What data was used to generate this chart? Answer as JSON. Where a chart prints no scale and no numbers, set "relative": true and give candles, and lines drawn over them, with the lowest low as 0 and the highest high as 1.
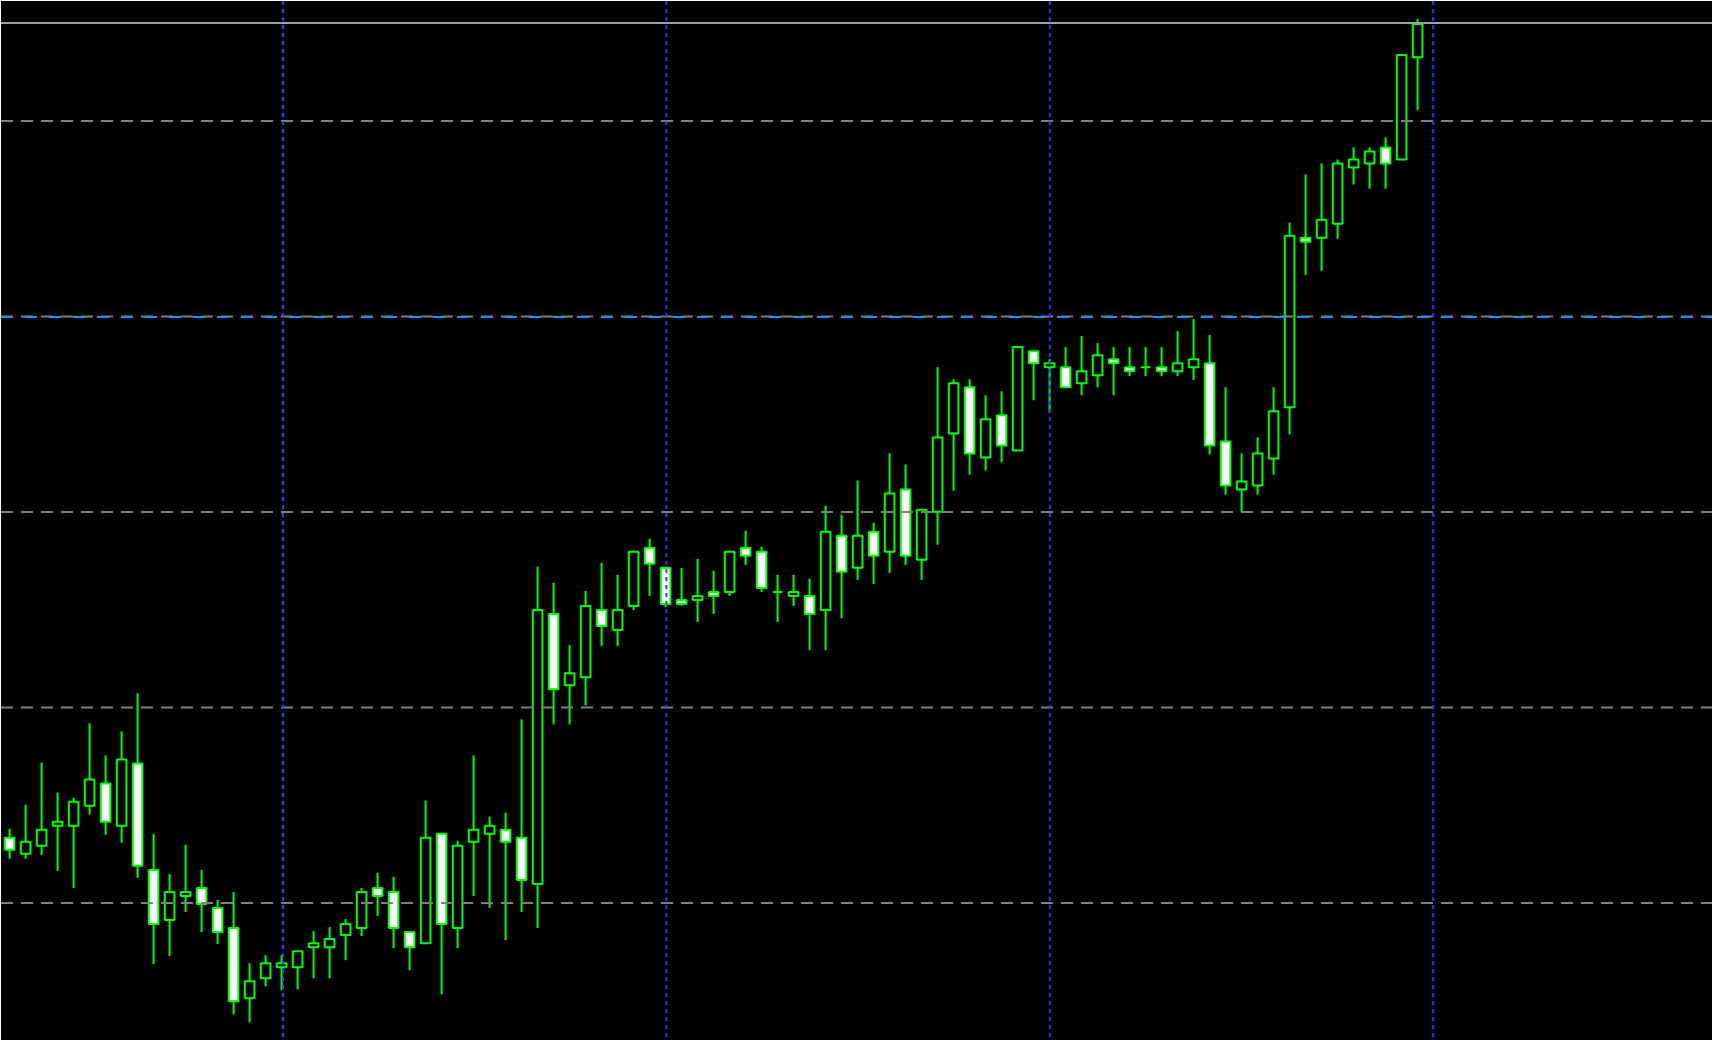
{
  "chart_data": {
    "type": "candlestick",
    "relative": true,
    "grid": true,
    "color": "#00ff00",
    "categories": [
      null,
      null,
      null,
      null,
      null,
      null,
      null,
      null,
      null,
      null,
      null,
      null,
      null,
      null,
      null,
      null,
      null,
      null,
      null,
      null,
      null,
      null,
      null,
      null,
      null,
      null,
      null,
      null,
      null,
      null,
      null,
      null,
      null,
      null,
      null,
      null,
      null,
      null,
      null,
      null,
      null,
      null,
      null,
      null,
      null,
      null,
      null,
      null,
      null,
      null,
      null,
      null,
      null,
      null,
      null,
      null,
      null,
      null,
      null,
      null,
      null,
      null,
      null,
      null,
      null,
      null,
      null,
      null,
      null,
      null,
      null,
      null,
      null,
      null,
      null,
      null,
      null,
      null,
      null,
      null,
      null,
      null,
      null,
      null,
      null,
      null,
      null,
      null,
      null
    ],
    "ohlc": [
      [
        0.184,
        0.193,
        0.163,
        0.172
      ],
      [
        0.168,
        0.217,
        0.163,
        0.18
      ],
      [
        0.176,
        0.259,
        0.167,
        0.192
      ],
      [
        0.196,
        0.229,
        0.151,
        0.2
      ],
      [
        0.196,
        0.224,
        0.134,
        0.22
      ],
      [
        0.216,
        0.298,
        0.207,
        0.242
      ],
      [
        0.238,
        0.266,
        0.187,
        0.2
      ],
      [
        0.196,
        0.29,
        0.179,
        0.262
      ],
      [
        0.258,
        0.328,
        0.144,
        0.156
      ],
      [
        0.152,
        0.188,
        0.058,
        0.098
      ],
      [
        0.102,
        0.148,
        0.066,
        0.13
      ],
      [
        0.126,
        0.177,
        0.11,
        0.13
      ],
      [
        0.134,
        0.152,
        0.09,
        0.118
      ],
      [
        0.114,
        0.122,
        0.078,
        0.09
      ],
      [
        0.094,
        0.13,
        0.008,
        0.021
      ],
      [
        0.024,
        0.059,
        0,
        0.041
      ],
      [
        0.044,
        0.067,
        0.036,
        0.059
      ],
      [
        0.055,
        0.067,
        0.032,
        0.059
      ],
      [
        0.055,
        0.071,
        0.033,
        0.071
      ],
      [
        0.075,
        0.091,
        0.044,
        0.079
      ],
      [
        0.075,
        0.095,
        0.044,
        0.083
      ],
      [
        0.087,
        0.103,
        0.062,
        0.098
      ],
      [
        0.094,
        0.134,
        0.086,
        0.13
      ],
      [
        0.134,
        0.149,
        0.106,
        0.126
      ],
      [
        0.13,
        0.145,
        0.074,
        0.094
      ],
      [
        0.09,
        0.09,
        0.052,
        0.075
      ],
      [
        0.079,
        0.221,
        0.079,
        0.184
      ],
      [
        0.188,
        0.189,
        0.028,
        0.098
      ],
      [
        0.094,
        0.181,
        0.074,
        0.176
      ],
      [
        0.18,
        0.266,
        0.126,
        0.192
      ],
      [
        0.188,
        0.205,
        0.114,
        0.196
      ],
      [
        0.192,
        0.209,
        0.082,
        0.18
      ],
      [
        0.184,
        0.302,
        0.11,
        0.142
      ],
      [
        0.138,
        0.454,
        0.094,
        0.411
      ],
      [
        0.407,
        0.438,
        0.297,
        0.332
      ],
      [
        0.336,
        0.376,
        0.297,
        0.348
      ],
      [
        0.344,
        0.43,
        0.316,
        0.415
      ],
      [
        0.411,
        0.458,
        0.375,
        0.395
      ],
      [
        0.391,
        0.446,
        0.375,
        0.411
      ],
      [
        0.415,
        0.47,
        0.411,
        0.469
      ],
      [
        0.473,
        0.482,
        0.425,
        0.457
      ],
      [
        0.453,
        0.454,
        0.414,
        0.417
      ],
      [
        0.421,
        0.453,
        0.415,
        0.417
      ],
      [
        0.421,
        0.462,
        0.399,
        0.425
      ],
      [
        0.429,
        0.45,
        0.407,
        0.425
      ],
      [
        0.429,
        0.47,
        0.425,
        0.469
      ],
      [
        0.473,
        0.49,
        0.456,
        0.465
      ],
      [
        0.469,
        0.474,
        0.429,
        0.433
      ],
      [
        0.429,
        0.446,
        0.399,
        0.429
      ],
      [
        0.425,
        0.446,
        0.415,
        0.429
      ],
      [
        0.425,
        0.442,
        0.371,
        0.407
      ],
      [
        0.411,
        0.515,
        0.371,
        0.489
      ],
      [
        0.485,
        0.506,
        0.403,
        0.449
      ],
      [
        0.453,
        0.54,
        0.441,
        0.485
      ],
      [
        0.489,
        0.498,
        0.437,
        0.465
      ],
      [
        0.469,
        0.567,
        0.448,
        0.527
      ],
      [
        0.531,
        0.556,
        0.456,
        0.465
      ],
      [
        0.461,
        0.511,
        0.441,
        0.511
      ],
      [
        0.509,
        0.653,
        0.476,
        0.583
      ],
      [
        0.587,
        0.641,
        0.53,
        0.637
      ],
      [
        0.633,
        0.641,
        0.546,
        0.567
      ],
      [
        0.563,
        0.625,
        0.55,
        0.601
      ],
      [
        0.605,
        0.629,
        0.558,
        0.575
      ],
      [
        0.57,
        0.673,
        0.57,
        0.673
      ],
      [
        0.669,
        0.669,
        0.62,
        0.657
      ],
      [
        0.653,
        0.661,
        0.608,
        0.657
      ],
      [
        0.653,
        0.673,
        0.633,
        0.633
      ],
      [
        0.637,
        0.684,
        0.625,
        0.649
      ],
      [
        0.645,
        0.677,
        0.633,
        0.665
      ],
      [
        0.661,
        0.673,
        0.625,
        0.657
      ],
      [
        0.653,
        0.673,
        0.644,
        0.649
      ],
      [
        0.653,
        0.673,
        0.644,
        0.653
      ],
      [
        0.653,
        0.673,
        0.644,
        0.649
      ],
      [
        0.649,
        0.689,
        0.644,
        0.657
      ],
      [
        0.653,
        0.701,
        0.64,
        0.661
      ],
      [
        0.657,
        0.685,
        0.566,
        0.575
      ],
      [
        0.579,
        0.633,
        0.526,
        0.535
      ],
      [
        0.531,
        0.567,
        0.509,
        0.539
      ],
      [
        0.535,
        0.583,
        0.526,
        0.567
      ],
      [
        0.562,
        0.633,
        0.546,
        0.609
      ],
      [
        0.613,
        0.797,
        0.586,
        0.784
      ],
      [
        0.782,
        0.845,
        0.745,
        0.778
      ],
      [
        0.782,
        0.856,
        0.749,
        0.8
      ],
      [
        0.796,
        0.86,
        0.781,
        0.856
      ],
      [
        0.852,
        0.872,
        0.835,
        0.86
      ],
      [
        0.856,
        0.872,
        0.831,
        0.868
      ],
      [
        0.872,
        0.882,
        0.831,
        0.856
      ],
      [
        0.86,
        0.964,
        0.86,
        0.964
      ],
      [
        0.962,
        1,
        0.909,
        0.995
      ]
    ],
    "ref_lines": [
      {
        "axis": "y",
        "value": 0.703,
        "color": "#1e90ff",
        "line_style": "dashed"
      },
      {
        "axis": "y",
        "value": 0.996,
        "color": "#a0a0a0",
        "line_style": "solid"
      }
    ]
  }
}
